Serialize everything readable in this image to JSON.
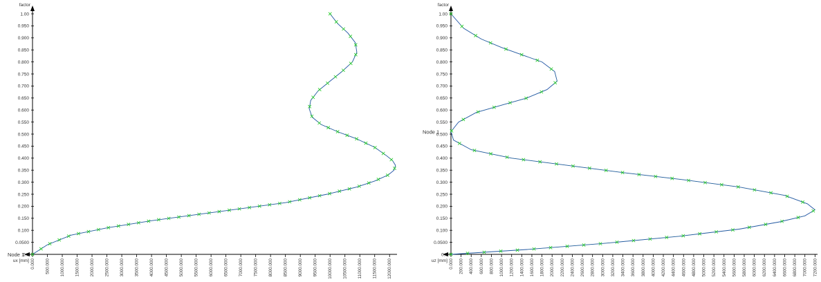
{
  "colors": {
    "curve": "#2233cc",
    "marker": "#22cc22",
    "axis": "#000000",
    "text": "#333333"
  },
  "chart_data": [
    {
      "type": "line",
      "ylabel": "factor",
      "xlabel": "ux [mm]",
      "node_label": "Node 1",
      "xlim": [
        0,
        12250
      ],
      "ylim": [
        0,
        1.0
      ],
      "yticks": [
        "0.0",
        "0.0500",
        "0.100",
        "0.150",
        "0.200",
        "0.250",
        "0.300",
        "0.350",
        "0.400",
        "0.450",
        "0.500",
        "0.550",
        "0.600",
        "0.650",
        "0.700",
        "0.750",
        "0.800",
        "0.850",
        "0.900",
        "0.950",
        "1.00"
      ],
      "xticks": [
        "0.000",
        "500.000",
        "1000.000",
        "1500.000",
        "2000.000",
        "2500.000",
        "3000.000",
        "3500.000",
        "4000.000",
        "4500.000",
        "5000.000",
        "5500.000",
        "6000.000",
        "6500.000",
        "7000.000",
        "7500.000",
        "8000.000",
        "8500.000",
        "9000.000",
        "9500.000",
        "10000.000",
        "10500.000",
        "11000.000",
        "11500.000",
        "12000.000"
      ],
      "series": [
        {
          "x": [
            0,
            500,
            1300,
            2500,
            4000,
            5500,
            7000,
            8500,
            9900,
            10900,
            11500,
            11950,
            12150,
            12200,
            12100,
            11900,
            11500,
            10900,
            10250,
            9700,
            9400,
            9300,
            9350,
            9600,
            10000,
            10400,
            10750,
            10900,
            10850,
            10600,
            10250,
            10000
          ],
          "y": [
            0,
            0.04,
            0.08,
            0.11,
            0.14,
            0.165,
            0.19,
            0.215,
            0.25,
            0.28,
            0.305,
            0.33,
            0.35,
            0.37,
            0.39,
            0.41,
            0.445,
            0.48,
            0.51,
            0.54,
            0.57,
            0.605,
            0.64,
            0.68,
            0.72,
            0.76,
            0.8,
            0.84,
            0.88,
            0.92,
            0.96,
            1.0
          ]
        }
      ]
    },
    {
      "type": "line",
      "ylabel": "factor",
      "xlabel": "uz [mm]",
      "node_label": "Node 1",
      "xlim": [
        0,
        7250
      ],
      "ylim": [
        0,
        1.0
      ],
      "yticks": [
        "0.0",
        "0.0500",
        "0.100",
        "0.150",
        "0.200",
        "0.250",
        "0.300",
        "0.350",
        "0.400",
        "0.450",
        "0.500",
        "0.550",
        "0.600",
        "0.650",
        "0.700",
        "0.750",
        "0.800",
        "0.850",
        "0.900",
        "0.950",
        "1.00"
      ],
      "xticks": [
        "0.000",
        "200.000",
        "400.000",
        "600.000",
        "800.000",
        "1000.000",
        "1200.000",
        "1400.000",
        "1600.000",
        "1800.000",
        "2000.000",
        "2200.000",
        "2400.000",
        "2600.000",
        "2800.000",
        "3000.000",
        "3200.000",
        "3400.000",
        "3600.000",
        "3800.000",
        "4000.000",
        "4200.000",
        "4400.000",
        "4600.000",
        "4800.000",
        "5000.000",
        "5200.000",
        "5400.000",
        "5600.000",
        "5800.000",
        "6000.000",
        "6200.000",
        "6400.000",
        "6600.000",
        "6800.000",
        "7000.000",
        "7200.000"
      ],
      "series": [
        {
          "x": [
            0,
            1500,
            3000,
            4500,
            5700,
            6500,
            7000,
            7200,
            7050,
            6600,
            5700,
            4600,
            3400,
            2300,
            1200,
            400,
            50,
            0,
            150,
            500,
            1000,
            1500,
            1900,
            2100,
            2050,
            1800,
            1400,
            1000,
            600,
            250,
            0
          ],
          "y": [
            0,
            0.02,
            0.045,
            0.075,
            0.105,
            0.135,
            0.16,
            0.185,
            0.21,
            0.245,
            0.28,
            0.31,
            0.34,
            0.37,
            0.4,
            0.435,
            0.475,
            0.51,
            0.55,
            0.59,
            0.62,
            0.65,
            0.685,
            0.72,
            0.76,
            0.8,
            0.83,
            0.86,
            0.895,
            0.94,
            1.0
          ]
        }
      ]
    }
  ]
}
